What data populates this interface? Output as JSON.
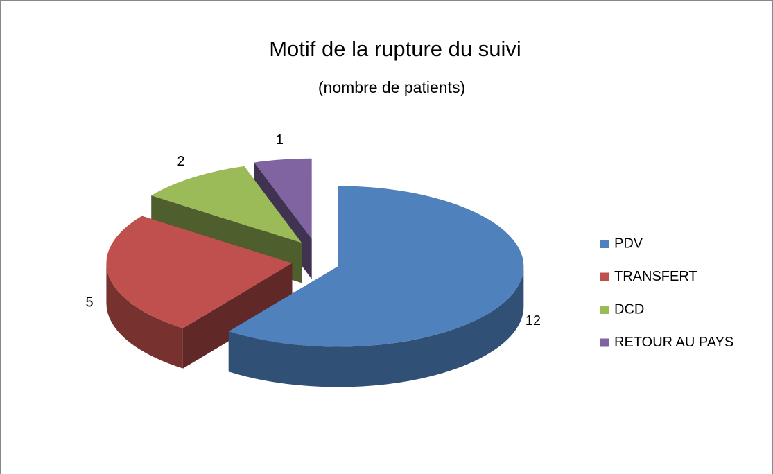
{
  "chart_data": {
    "type": "pie3d",
    "title": "Motif de la rupture du suivi",
    "subtitle": "(nombre de patients)",
    "categories": [
      "PDV",
      "TRANSFERT",
      "DCD",
      "RETOUR AU PAYS"
    ],
    "values": [
      12,
      5,
      2,
      1
    ],
    "colors": [
      "#4f81bd",
      "#c0504d",
      "#9bbb59",
      "#8064a2"
    ],
    "legend": "right"
  }
}
